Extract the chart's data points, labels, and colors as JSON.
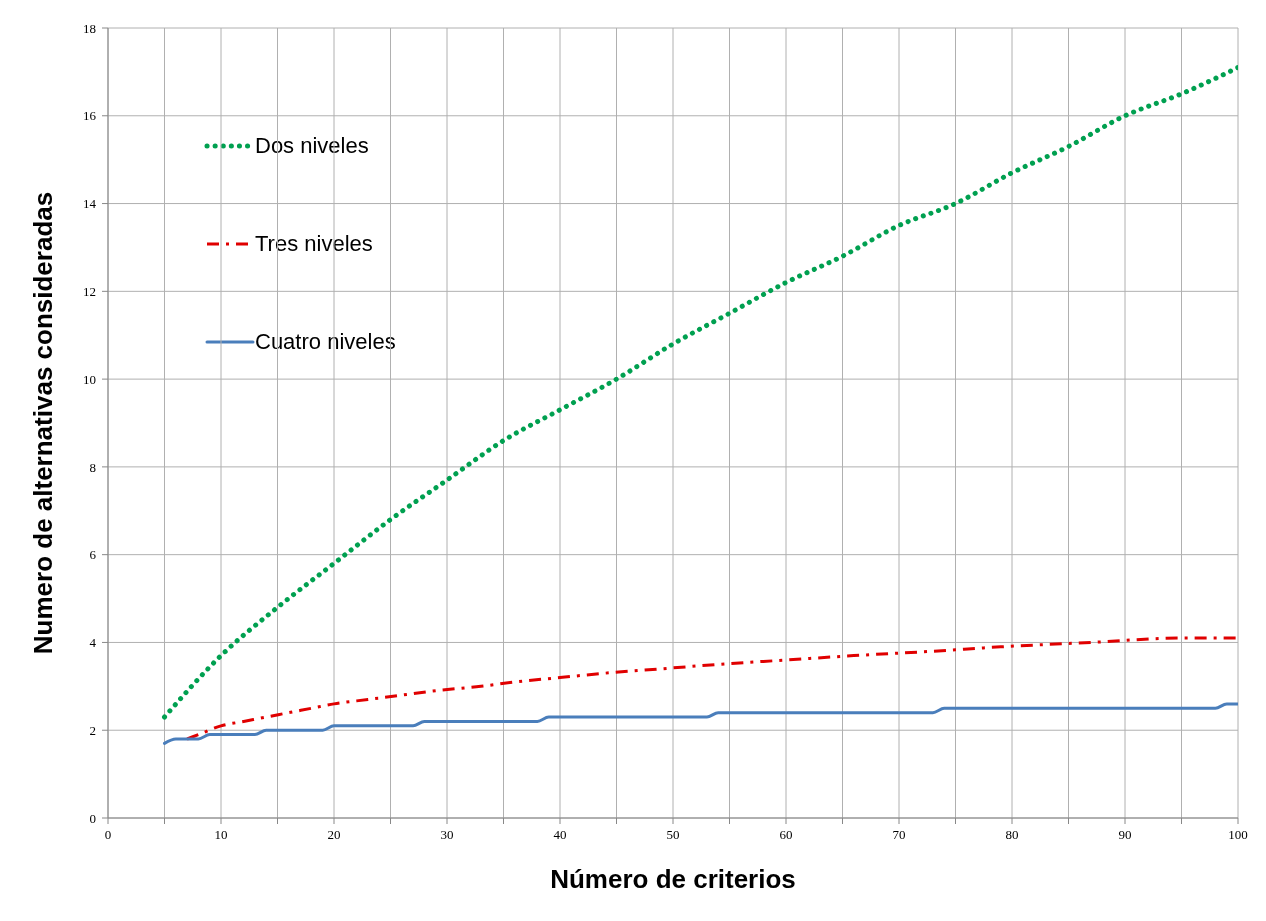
{
  "chart_data": {
    "type": "line",
    "xlabel": "Número de criterios",
    "ylabel": "Numero de alternativas consideradas",
    "xlim": [
      0,
      100
    ],
    "xticks": [
      0,
      {
        "value": 5,
        "label": null
      },
      10,
      {
        "value": 15,
        "label": null
      },
      20,
      {
        "value": 25,
        "label": null
      },
      30,
      {
        "value": 35,
        "label": null
      },
      40,
      {
        "value": 45,
        "label": null
      },
      50,
      {
        "value": 55,
        "label": null
      },
      60,
      {
        "value": 65,
        "label": null
      },
      70,
      {
        "value": 75,
        "label": null
      },
      80,
      {
        "value": 85,
        "label": null
      },
      90,
      {
        "value": 95,
        "label": null
      },
      100
    ],
    "ylim": [
      0,
      18
    ],
    "yticks": [
      0,
      2,
      4,
      6,
      8,
      10,
      12,
      14,
      16,
      18
    ],
    "grid": true,
    "legend": "top left",
    "marker": "none",
    "series": [
      {
        "name": "Dos niveles",
        "color": "#00a050",
        "line_style": "dotted",
        "x": [
          5,
          10,
          15,
          20,
          25,
          30,
          35,
          40,
          45,
          50,
          55,
          60,
          65,
          70,
          75,
          80,
          85,
          90,
          95,
          100
        ],
        "values": [
          2.3,
          3.7,
          4.8,
          5.8,
          6.8,
          7.7,
          8.6,
          9.3,
          10.0,
          10.8,
          11.5,
          12.2,
          12.8,
          13.5,
          14.0,
          14.7,
          15.3,
          16.0,
          16.5,
          17.1
        ]
      },
      {
        "name": "Tres niveles",
        "color": "#e00000",
        "line_style": "dashed",
        "x": [
          7,
          8,
          10,
          12,
          14,
          16,
          18,
          20,
          23,
          26,
          29,
          33,
          36,
          40,
          44,
          49,
          54,
          60,
          66,
          73,
          79,
          87,
          95,
          100
        ],
        "values": [
          1.8,
          1.9,
          2.1,
          2.2,
          2.3,
          2.4,
          2.5,
          2.6,
          2.7,
          2.8,
          2.9,
          3.0,
          3.1,
          3.2,
          3.3,
          3.4,
          3.5,
          3.6,
          3.7,
          3.8,
          3.9,
          4.0,
          4.1,
          4.1
        ]
      },
      {
        "name": "Cuatro niveles",
        "color": "#4a7ebb",
        "line_style": "solid",
        "x": [
          5,
          6,
          8,
          9,
          13,
          14,
          19,
          20,
          27,
          28,
          38,
          39,
          53,
          54,
          73,
          74,
          98,
          99,
          100
        ],
        "values": [
          1.7,
          1.8,
          1.8,
          1.9,
          1.9,
          2.0,
          2.0,
          2.1,
          2.1,
          2.2,
          2.2,
          2.3,
          2.3,
          2.4,
          2.4,
          2.5,
          2.5,
          2.6,
          2.6
        ]
      }
    ]
  }
}
